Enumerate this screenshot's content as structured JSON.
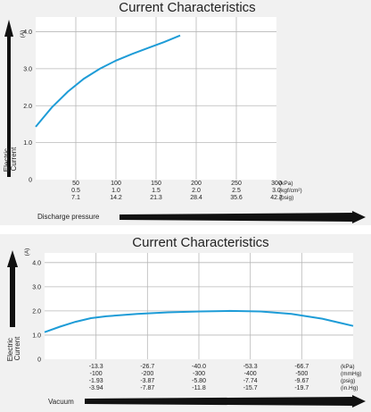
{
  "chart_data": [
    {
      "type": "line",
      "title": "Current Characteristics",
      "ylabel": "Electric Current",
      "yunit": "(A)",
      "xlabel": "Discharge pressure",
      "ylim": [
        0,
        4.4
      ],
      "yticks": [
        "1.0",
        "2.0",
        "3.0",
        "4.0"
      ],
      "ytick_values": [
        1.0,
        2.0,
        3.0,
        4.0
      ],
      "xlim": [
        0,
        300
      ],
      "x_ticks": [
        50,
        100,
        150,
        200,
        250,
        300
      ],
      "x_tick_rows": [
        [
          "50",
          "100",
          "150",
          "200",
          "250",
          "300"
        ],
        [
          "0.5",
          "1.0",
          "1.5",
          "2.0",
          "2.5",
          "3.0"
        ],
        [
          "7.1",
          "14.2",
          "21.3",
          "28.4",
          "35.6",
          "42.7"
        ]
      ],
      "x_units": [
        "(kPa)",
        "(kgf/cm²)",
        "(psig)"
      ],
      "grid": true,
      "series": [
        {
          "color": "#1e9cd7",
          "x": [
            0,
            20,
            40,
            60,
            80,
            100,
            120,
            140,
            160,
            180
          ],
          "y": [
            1.43,
            1.95,
            2.38,
            2.73,
            3.0,
            3.22,
            3.4,
            3.56,
            3.72,
            3.9
          ]
        }
      ]
    },
    {
      "type": "line",
      "title": "Current Characteristics",
      "ylabel": "Electric Current",
      "yunit": "(A)",
      "xlabel": "Vacuum",
      "ylim": [
        0,
        4.4
      ],
      "yticks": [
        "1.0",
        "2.0",
        "3.0",
        "4.0"
      ],
      "ytick_values": [
        1.0,
        2.0,
        3.0,
        4.0
      ],
      "xlim": [
        0,
        100
      ],
      "x_ticks": [
        16.67,
        33.33,
        50,
        66.67,
        83.33
      ],
      "x_tick_rows": [
        [
          "-13.3",
          "-26.7",
          "-40.0",
          "-53.3",
          "-66.7"
        ],
        [
          "-100",
          "-200",
          "-300",
          "-400",
          "-500"
        ],
        [
          "-1.93",
          "-3.87",
          "-5.80",
          "-7.74",
          "-9.67"
        ],
        [
          "-3.94",
          "-7.87",
          "-11.8",
          "-15.7",
          "-19.7"
        ]
      ],
      "x_units": [
        "(kPa)",
        "(mmHg)",
        "(psig)",
        "(in.Hg)"
      ],
      "grid": true,
      "series": [
        {
          "color": "#1e9cd7",
          "x": [
            0,
            5,
            10,
            15,
            20,
            30,
            40,
            50,
            60,
            70,
            80,
            90,
            100
          ],
          "y": [
            1.12,
            1.35,
            1.55,
            1.7,
            1.78,
            1.88,
            1.94,
            1.98,
            2.0,
            1.98,
            1.88,
            1.68,
            1.38
          ]
        }
      ]
    }
  ]
}
